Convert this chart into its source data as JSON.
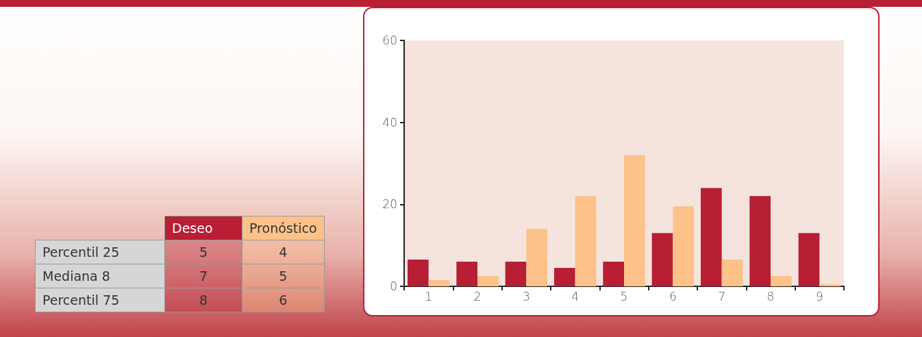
{
  "chart_data": [
    {
      "type": "other",
      "categories": [
        "Percentil 25",
        "Mediana 8",
        "Percentil 75"
      ],
      "data_labels": true,
      "series": [
        {
          "name": "Deseo",
          "color": "#b81f34",
          "values": [
            5,
            7,
            8
          ]
        },
        {
          "name": "Pronóstico",
          "color": "#fcc28a",
          "values": [
            4,
            5,
            6
          ]
        }
      ]
    },
    {
      "type": "bar",
      "categories": [
        "1",
        "2",
        "3",
        "4",
        "5",
        "6",
        "7",
        "8",
        "9"
      ],
      "ylim": [
        0,
        60
      ],
      "yticks": [
        0,
        20,
        40,
        60
      ],
      "grid": false,
      "series": [
        {
          "color": "#b81f34",
          "values": [
            6.5,
            6,
            6,
            4.5,
            6,
            13,
            24,
            22,
            13
          ]
        },
        {
          "color": "#fcc28a",
          "values": [
            1.5,
            2.5,
            14,
            22,
            32,
            19.5,
            6.5,
            2.5,
            0.5
          ]
        }
      ]
    }
  ]
}
